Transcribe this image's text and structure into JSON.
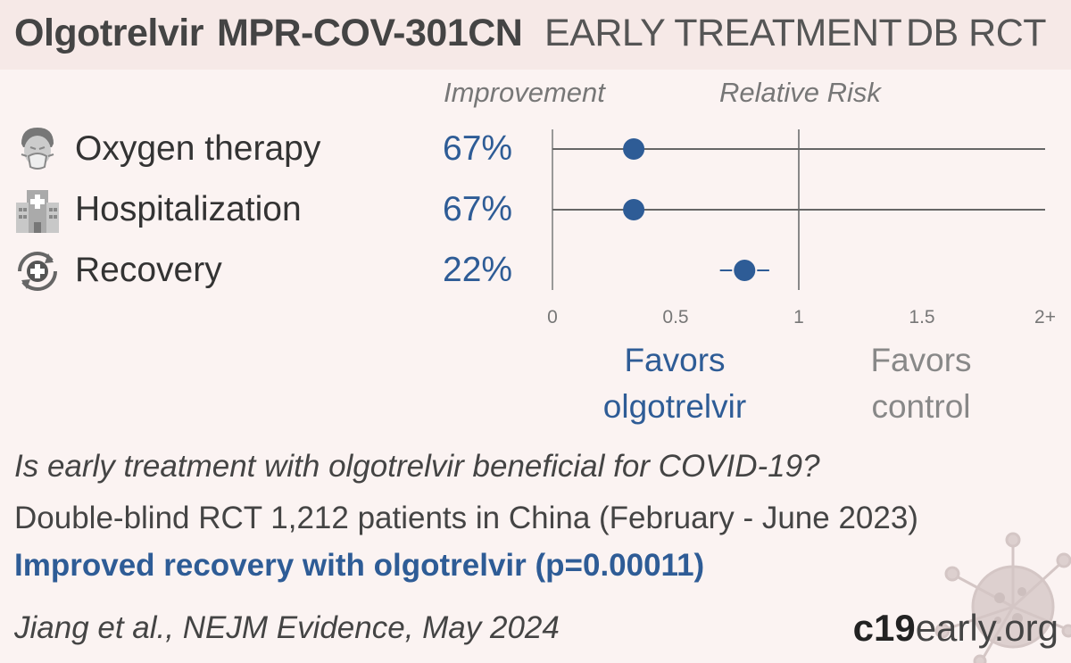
{
  "header": {
    "drug": "Olgotrelvir",
    "trial": "MPR-COV-301CN",
    "stage": "EARLY TREATMENT",
    "design": "DB RCT"
  },
  "columns": {
    "improvement": "Improvement",
    "relative_risk": "Relative Risk"
  },
  "outcomes": [
    {
      "label": "Oxygen therapy",
      "improvement": "67%",
      "icon": "oxygen-mask-person-icon"
    },
    {
      "label": "Hospitalization",
      "improvement": "67%",
      "icon": "hospital-building-icon"
    },
    {
      "label": "Recovery",
      "improvement": "22%",
      "icon": "recovery-cross-icon"
    }
  ],
  "chart_data": {
    "type": "forest",
    "x_ticks": [
      "0",
      "0.5",
      "1",
      "1.5",
      "2+"
    ],
    "xlim": [
      0,
      2
    ],
    "reference_line": 1,
    "series": [
      {
        "category": "Oxygen therapy",
        "value": 0.33,
        "ci_low": 0,
        "ci_high": 2
      },
      {
        "category": "Hospitalization",
        "value": 0.33,
        "ci_low": 0,
        "ci_high": 2
      },
      {
        "category": "Recovery",
        "value": 0.78,
        "ci_low": 0.68,
        "ci_high": 0.88
      }
    ],
    "point_color": "#2e5c96"
  },
  "favors": {
    "left_line1": "Favors",
    "left_line2": "olgotrelvir",
    "right_line1": "Favors",
    "right_line2": "control"
  },
  "summary": {
    "question": "Is early treatment with olgotrelvir beneficial for COVID-19?",
    "description": "Double-blind RCT 1,212 patients in China (February - June 2023)",
    "conclusion": "Improved recovery with olgotrelvir (p=0.00011)"
  },
  "reference": "Jiang et al., NEJM Evidence, May 2024",
  "brand": {
    "bold": "c19",
    "regular": "early.org"
  }
}
